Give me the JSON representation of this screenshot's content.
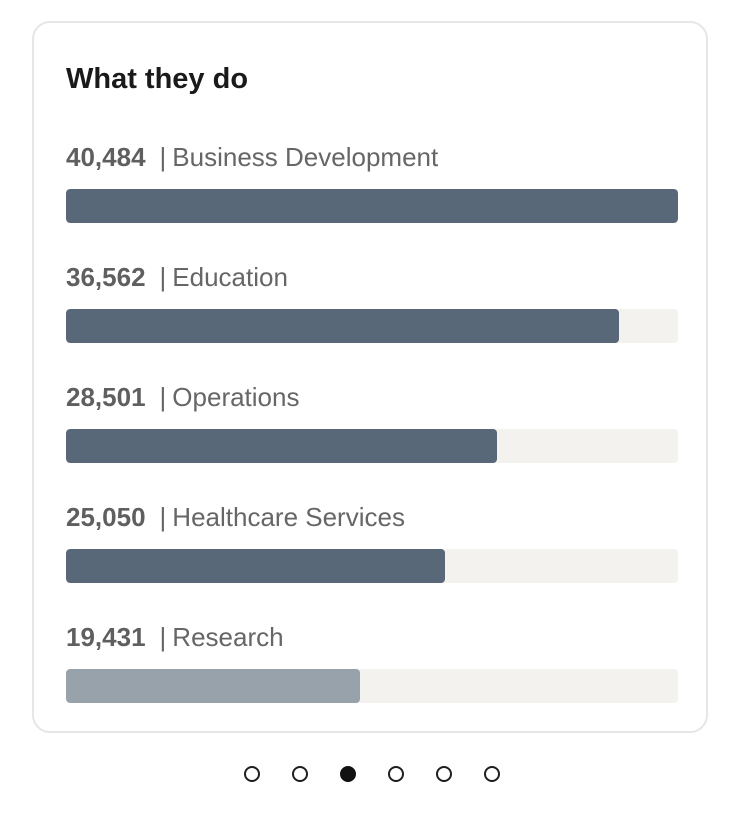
{
  "card": {
    "title": "What they do"
  },
  "chart_data": {
    "type": "bar",
    "orientation": "horizontal",
    "title": "What they do",
    "categories": [
      "Business Development",
      "Education",
      "Operations",
      "Healthcare Services",
      "Research"
    ],
    "values": [
      40484,
      36562,
      28501,
      25050,
      19431
    ],
    "labels": [
      "40,484",
      "36,562",
      "28,501",
      "25,050",
      "19,431"
    ],
    "separator": "|",
    "max": 40484,
    "bar_colors": [
      "#586879",
      "#586879",
      "#586879",
      "#586879",
      "#97a2ab"
    ],
    "track_color": "#f3f2ef",
    "grid": false
  },
  "pagination": {
    "count": 6,
    "active_index": 2
  }
}
